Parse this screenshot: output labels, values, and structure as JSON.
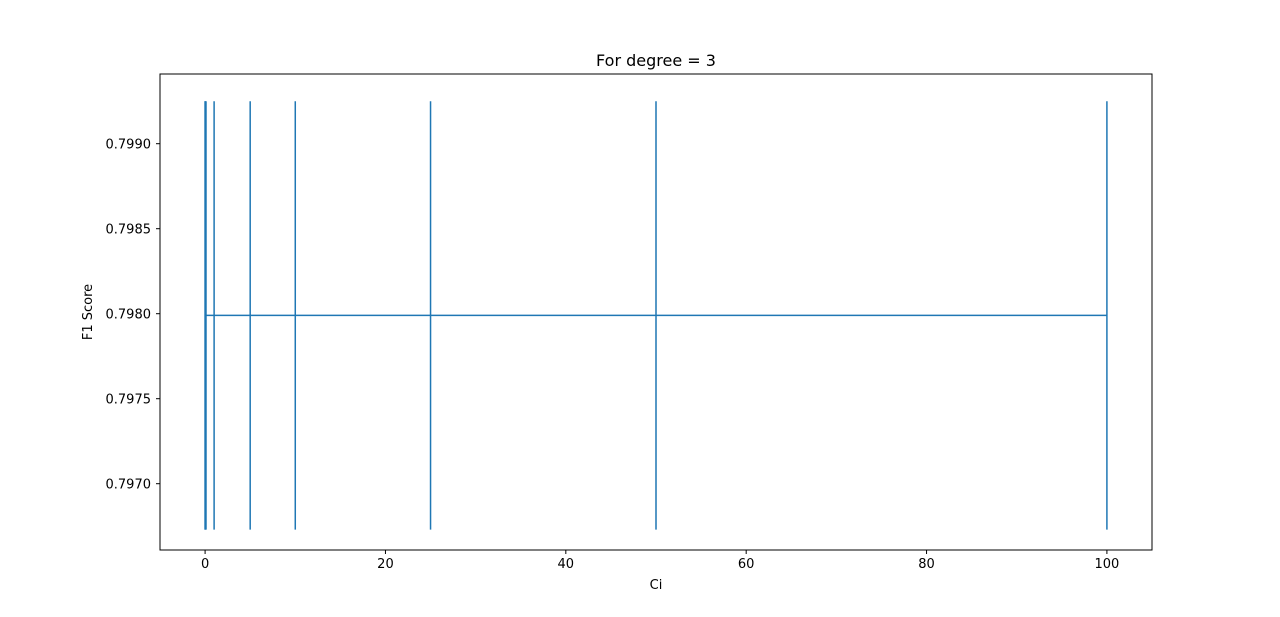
{
  "chart_data": {
    "type": "line",
    "title": "For degree = 3",
    "xlabel": "Ci",
    "ylabel": "F1 Score",
    "xlim": [
      -5,
      105
    ],
    "ylim": [
      0.79661,
      0.79941
    ],
    "x_ticks": [
      0,
      20,
      40,
      60,
      80,
      100
    ],
    "x_tick_labels": [
      "0",
      "20",
      "40",
      "60",
      "80",
      "100"
    ],
    "y_ticks": [
      0.797,
      0.7975,
      0.798,
      0.7985,
      0.799
    ],
    "y_tick_labels": [
      "0.7970",
      "0.7975",
      "0.7980",
      "0.7985",
      "0.7990"
    ],
    "grid": false,
    "series": [
      {
        "x": [
          0.001,
          0.01,
          0.1,
          1,
          5,
          10,
          25,
          50,
          100
        ],
        "y": [
          0.79799,
          0.79799,
          0.79799,
          0.79799,
          0.79799,
          0.79799,
          0.79799,
          0.79799,
          0.79799
        ],
        "yerr_low": [
          0.79673,
          0.79673,
          0.79673,
          0.79673,
          0.79673,
          0.79673,
          0.79673,
          0.79673,
          0.79673
        ],
        "yerr_high": [
          0.79925,
          0.79925,
          0.79925,
          0.79925,
          0.79925,
          0.79925,
          0.79925,
          0.79925,
          0.79925
        ],
        "color": "#1f77b4"
      }
    ]
  }
}
